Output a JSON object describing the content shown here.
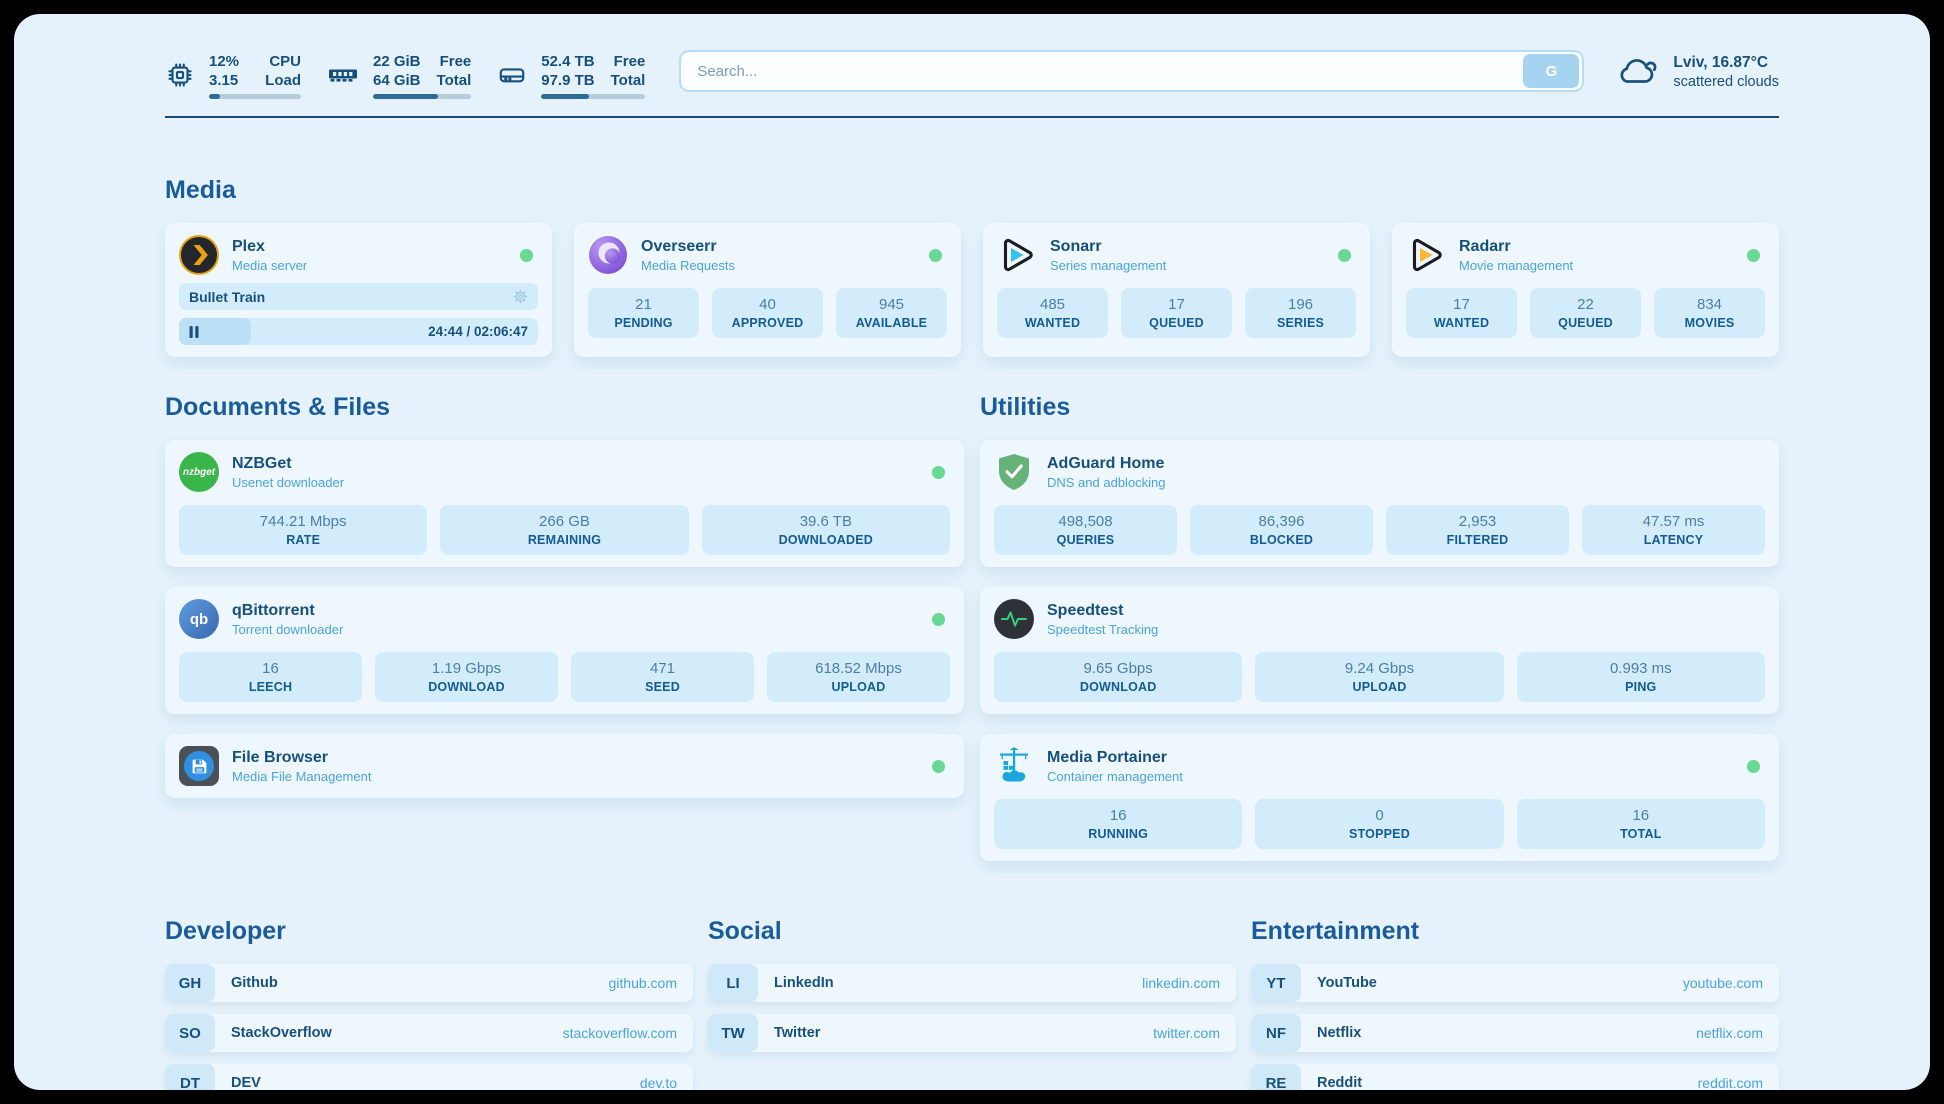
{
  "colors": {
    "accent_navy": "#17507f",
    "heading_blue": "#1a5b9b",
    "link_blue": "#4aa3e3",
    "status_green": "#68d893",
    "page_bg": "#e5f2fb",
    "card_bg": "#eef7fd",
    "stat_box_bg": "#d3ecfb",
    "progress_fill": "#2d6c95",
    "progress_track": "#b7ccd9",
    "plex_amber": "#e8a20c",
    "sonarr_cyan": "#36c3f1",
    "radarr_amber": "#f8b930",
    "nzbget_green": "#39b54a",
    "adguard_green": "#67b279",
    "speedtest_green": "#35d07f",
    "portainer_blue": "#18a7e0"
  },
  "topbar": {
    "stats": [
      {
        "icon": "cpu-icon",
        "values": [
          "12%",
          "3.15"
        ],
        "labels": [
          "CPU",
          "Load"
        ],
        "progress_pct": 12
      },
      {
        "icon": "memory-icon",
        "values": [
          "22 GiB",
          "64 GiB"
        ],
        "labels": [
          "Free",
          "Total"
        ],
        "progress_pct": 66
      },
      {
        "icon": "disk-icon",
        "values": [
          "52.4 TB",
          "97.9 TB"
        ],
        "labels": [
          "Free",
          "Total"
        ],
        "progress_pct": 46
      }
    ],
    "search": {
      "placeholder": "Search...",
      "engine_button": "G"
    },
    "weather": {
      "icon": "cloud-icon",
      "location": "Lviv, 16.87°C",
      "condition": "scattered clouds"
    }
  },
  "sections": {
    "media": {
      "title": "Media",
      "cards": [
        {
          "icon": "plex-icon",
          "name": "Plex",
          "description": "Media server",
          "online": true,
          "now_playing": {
            "title": "Bullet Train",
            "state": "paused",
            "time": "24:44 / 02:06:47",
            "progress_pct": 20
          }
        },
        {
          "icon": "overseerr-icon",
          "name": "Overseerr",
          "description": "Media Requests",
          "online": true,
          "stats": [
            {
              "value": "21",
              "label": "PENDING"
            },
            {
              "value": "40",
              "label": "APPROVED"
            },
            {
              "value": "945",
              "label": "AVAILABLE"
            }
          ]
        },
        {
          "icon": "sonarr-icon",
          "name": "Sonarr",
          "description": "Series management",
          "online": true,
          "stats": [
            {
              "value": "485",
              "label": "WANTED"
            },
            {
              "value": "17",
              "label": "QUEUED"
            },
            {
              "value": "196",
              "label": "SERIES"
            }
          ]
        },
        {
          "icon": "radarr-icon",
          "name": "Radarr",
          "description": "Movie management",
          "online": true,
          "stats": [
            {
              "value": "17",
              "label": "WANTED"
            },
            {
              "value": "22",
              "label": "QUEUED"
            },
            {
              "value": "834",
              "label": "MOVIES"
            }
          ]
        }
      ]
    },
    "documents": {
      "title": "Documents & Files",
      "cards": [
        {
          "icon": "nzbget-icon",
          "name": "NZBGet",
          "description": "Usenet downloader",
          "online": true,
          "stats": [
            {
              "value": "744.21 Mbps",
              "label": "RATE"
            },
            {
              "value": "266 GB",
              "label": "REMAINING"
            },
            {
              "value": "39.6 TB",
              "label": "DOWNLOADED"
            }
          ]
        },
        {
          "icon": "qbittorrent-icon",
          "name": "qBittorrent",
          "description": "Torrent downloader",
          "online": true,
          "stats": [
            {
              "value": "16",
              "label": "LEECH"
            },
            {
              "value": "1.19 Gbps",
              "label": "DOWNLOAD"
            },
            {
              "value": "471",
              "label": "SEED"
            },
            {
              "value": "618.52 Mbps",
              "label": "UPLOAD"
            }
          ]
        },
        {
          "icon": "filebrowser-icon",
          "name": "File Browser",
          "description": "Media File Management",
          "online": true
        }
      ]
    },
    "utilities": {
      "title": "Utilities",
      "cards": [
        {
          "icon": "adguard-icon",
          "name": "AdGuard Home",
          "description": "DNS and adblocking",
          "online": false,
          "stats": [
            {
              "value": "498,508",
              "label": "QUERIES"
            },
            {
              "value": "86,396",
              "label": "BLOCKED"
            },
            {
              "value": "2,953",
              "label": "FILTERED"
            },
            {
              "value": "47.57 ms",
              "label": "LATENCY"
            }
          ]
        },
        {
          "icon": "speedtest-icon",
          "name": "Speedtest",
          "description": "Speedtest Tracking",
          "online": false,
          "stats": [
            {
              "value": "9.65 Gbps",
              "label": "DOWNLOAD"
            },
            {
              "value": "9.24 Gbps",
              "label": "UPLOAD"
            },
            {
              "value": "0.993 ms",
              "label": "PING"
            }
          ]
        },
        {
          "icon": "portainer-icon",
          "name": "Media Portainer",
          "description": "Container management",
          "online": true,
          "stats": [
            {
              "value": "16",
              "label": "RUNNING"
            },
            {
              "value": "0",
              "label": "STOPPED"
            },
            {
              "value": "16",
              "label": "TOTAL"
            }
          ]
        }
      ]
    },
    "developer": {
      "title": "Developer",
      "links": [
        {
          "badge": "GH",
          "name": "Github",
          "url": "github.com"
        },
        {
          "badge": "SO",
          "name": "StackOverflow",
          "url": "stackoverflow.com"
        },
        {
          "badge": "DT",
          "name": "DEV",
          "url": "dev.to"
        }
      ]
    },
    "social": {
      "title": "Social",
      "links": [
        {
          "badge": "LI",
          "name": "LinkedIn",
          "url": "linkedin.com"
        },
        {
          "badge": "TW",
          "name": "Twitter",
          "url": "twitter.com"
        }
      ]
    },
    "entertainment": {
      "title": "Entertainment",
      "links": [
        {
          "badge": "YT",
          "name": "YouTube",
          "url": "youtube.com"
        },
        {
          "badge": "NF",
          "name": "Netflix",
          "url": "netflix.com"
        },
        {
          "badge": "RE",
          "name": "Reddit",
          "url": "reddit.com"
        }
      ]
    }
  }
}
